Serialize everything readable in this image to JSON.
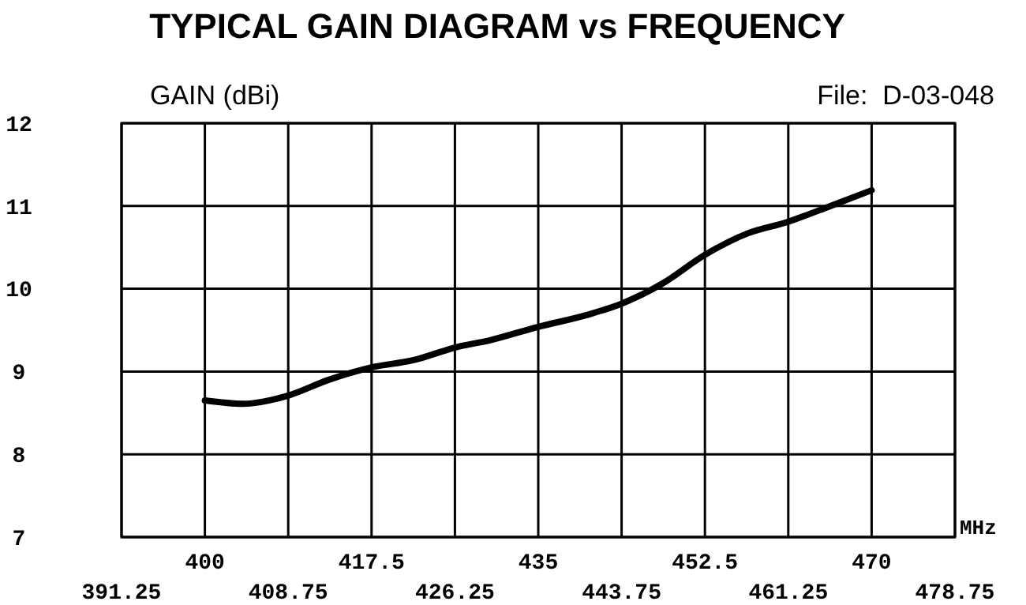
{
  "chart_data": {
    "type": "line",
    "title": "TYPICAL GAIN DIAGRAM vs FREQUENCY",
    "ylabel": "GAIN (dBi)",
    "xlabel": "MHz",
    "annotations": [
      "File:  D-03-048"
    ],
    "x": [
      400,
      404,
      408.75,
      413,
      417.5,
      422,
      426.25,
      430,
      435,
      440,
      443.75,
      448,
      452.5,
      457,
      461.25,
      465,
      470
    ],
    "series": [
      {
        "color": "#000000",
        "values": [
          8.65,
          8.61,
          8.71,
          8.9,
          9.05,
          9.14,
          9.29,
          9.38,
          9.54,
          9.68,
          9.82,
          10.06,
          10.41,
          10.67,
          10.81,
          10.97,
          11.19
        ]
      }
    ],
    "xlim": [
      391.25,
      478.75
    ],
    "xticks": [
      391.25,
      408.75,
      426.25,
      443.75,
      461.25,
      478.75
    ],
    "x2lim": [
      391.25,
      478.75
    ],
    "x2ticks": [
      400,
      417.5,
      435,
      452.5,
      470
    ],
    "ylim": [
      7,
      12
    ],
    "yticks": [
      7,
      8,
      9,
      10,
      11,
      12
    ],
    "grid": true,
    "marker": "none",
    "line_style": "solid"
  }
}
